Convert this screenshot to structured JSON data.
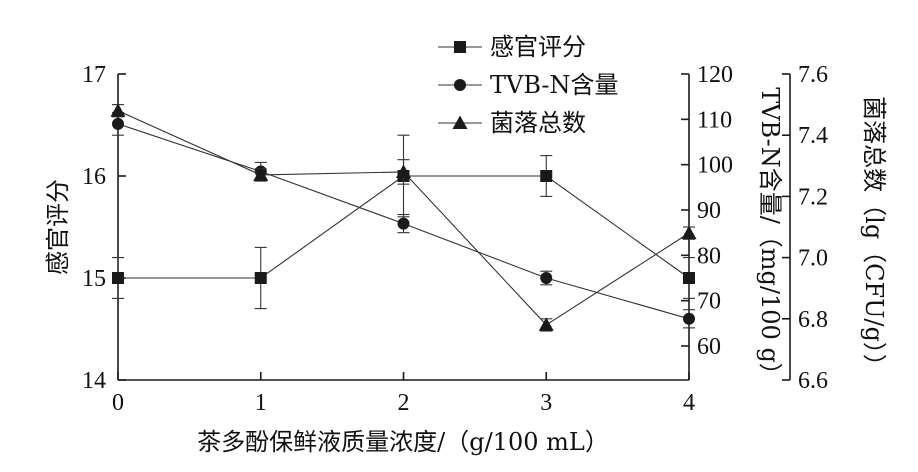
{
  "chart_data": {
    "type": "line",
    "xlabel": "茶多酚保鲜液质量浓度/（g/100 mL）",
    "x": [
      0,
      1,
      2,
      3,
      4
    ],
    "x_ticks": [
      "0",
      "1",
      "2",
      "3",
      "4"
    ],
    "axes": {
      "y_left": {
        "label": "感官评分",
        "range": [
          14,
          17
        ],
        "ticks": [
          "14",
          "15",
          "16",
          "17"
        ]
      },
      "y_right1": {
        "label": "TVB-N含量/（mg/100 g）",
        "range": [
          52.5,
          120
        ],
        "ticks": [
          "60",
          "70",
          "80",
          "90",
          "100",
          "110",
          "120"
        ]
      },
      "y_right2": {
        "label": "菌落总数（lg（CFU/g））",
        "range": [
          6.6,
          7.6
        ],
        "ticks": [
          "6.6",
          "6.8",
          "7.0",
          "7.2",
          "7.4",
          "7.6"
        ]
      }
    },
    "series": [
      {
        "name": "感官评分",
        "axis": "y_left",
        "marker": "square",
        "values": [
          15.0,
          15.0,
          16.0,
          16.0,
          15.0
        ],
        "errors": [
          0.2,
          0.3,
          0.4,
          0.2,
          0.2
        ]
      },
      {
        "name": "TVB-N含量",
        "axis": "y_right1",
        "marker": "circle",
        "values": [
          109.0,
          98.5,
          87.0,
          75.0,
          66.0
        ],
        "errors": [
          2.5,
          2.0,
          2.0,
          1.5,
          2.0
        ]
      },
      {
        "name": "菌落总数",
        "axis": "y_right2",
        "marker": "triangle",
        "values": [
          7.48,
          7.27,
          7.28,
          6.78,
          7.08
        ],
        "errors": [
          0.02,
          0.02,
          0.04,
          0.02,
          0.02
        ]
      }
    ],
    "legend_position": "top-center"
  }
}
